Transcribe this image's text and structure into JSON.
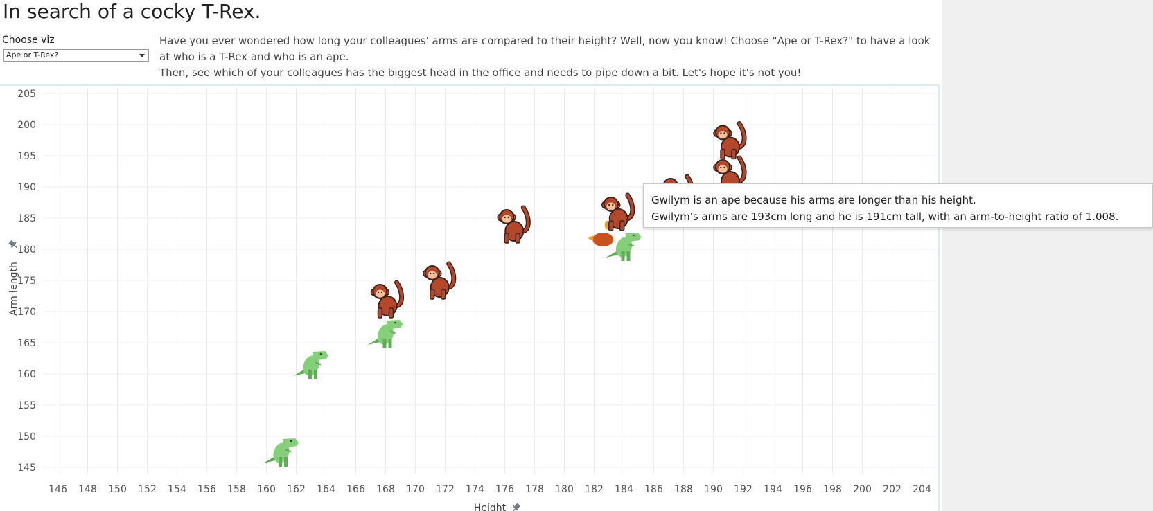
{
  "page": {
    "title": "In search of a cocky T-Rex.",
    "choose_label": "Choose viz",
    "select_value": "Ape or T-Rex?",
    "description_line1": "Have you ever wondered how long your colleagues' arms are compared to their height? Well, now you know! Choose \"Ape or T-Rex?\" to have a look at who is a T-Rex and who is an ape.",
    "description_line2": "Then, see which of your colleagues has the biggest head in the office and needs to pipe down a bit. Let's hope it's not you!"
  },
  "tooltip": {
    "line1": "Gwilym is an ape because his arms are longer than his height.",
    "line2": "Gwilym's arms are 193cm long and he is 191cm tall, with an arm-to-height ratio of 1.008."
  },
  "chart_data": {
    "type": "scatter",
    "xlabel": "Height",
    "ylabel": "Arm length",
    "xlim": [
      145,
      205
    ],
    "ylim": [
      144,
      206
    ],
    "xticks": [
      146,
      148,
      150,
      152,
      154,
      156,
      158,
      160,
      162,
      164,
      166,
      168,
      170,
      172,
      174,
      176,
      178,
      180,
      182,
      184,
      186,
      188,
      190,
      192,
      194,
      196,
      198,
      200,
      202,
      204
    ],
    "yticks": [
      145,
      150,
      155,
      160,
      165,
      170,
      175,
      180,
      185,
      190,
      195,
      200,
      205
    ],
    "grid": true,
    "marker_icons": {
      "ape": "monkey-icon",
      "trex": "t-rex-icon",
      "chicken": "chicken-icon"
    },
    "colors": {
      "ape": "#b5482a",
      "trex": "#86cf7a",
      "chicken": "#c9521c",
      "grid": "#ececec"
    },
    "points": [
      {
        "x": 161,
        "y": 148,
        "kind": "trex"
      },
      {
        "x": 163,
        "y": 162,
        "kind": "trex"
      },
      {
        "x": 168,
        "y": 167,
        "kind": "trex"
      },
      {
        "x": 168,
        "y": 172,
        "kind": "ape"
      },
      {
        "x": 171.5,
        "y": 175,
        "kind": "ape"
      },
      {
        "x": 176.5,
        "y": 184,
        "kind": "ape"
      },
      {
        "x": 182.5,
        "y": 182,
        "kind": "chicken"
      },
      {
        "x": 183.5,
        "y": 186,
        "kind": "ape"
      },
      {
        "x": 184,
        "y": 181,
        "kind": "trex"
      },
      {
        "x": 187.5,
        "y": 189,
        "kind": "ape"
      },
      {
        "x": 191,
        "y": 192,
        "kind": "ape"
      },
      {
        "x": 191,
        "y": 197.5,
        "kind": "ape"
      }
    ]
  }
}
